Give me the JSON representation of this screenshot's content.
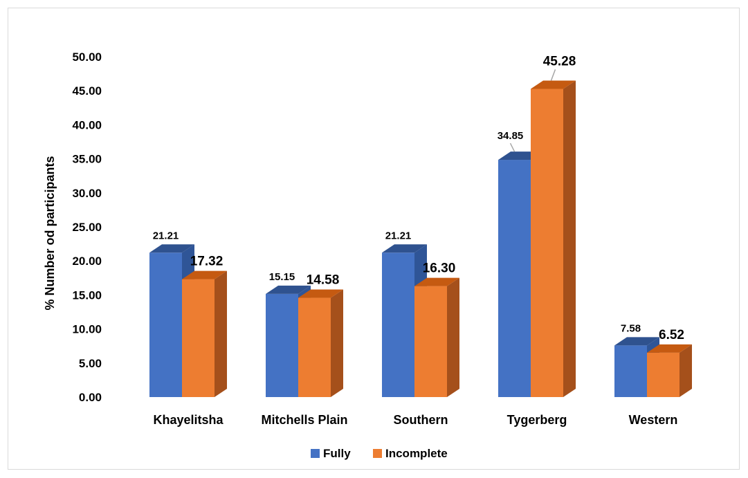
{
  "chart_data": {
    "type": "bar",
    "title": "",
    "xlabel": "",
    "ylabel": "% Number od participants",
    "ylim": [
      0,
      50
    ],
    "ytick_step": 5,
    "ytick_labels": [
      "0.00",
      "5.00",
      "10.00",
      "15.00",
      "20.00",
      "25.00",
      "30.00",
      "35.00",
      "40.00",
      "45.00",
      "50.00"
    ],
    "categories": [
      "Khayelitsha",
      "Mitchells Plain",
      "Southern",
      "Tygerberg",
      "Western"
    ],
    "series": [
      {
        "name": "Fully",
        "values": [
          21.21,
          15.15,
          21.21,
          34.85,
          7.58
        ],
        "labels": [
          "21.21",
          "15.15",
          "21.21",
          "34.85",
          "7.58"
        ],
        "color": "#4472c4",
        "top_color": "#2f528f",
        "side_color": "#2f5597"
      },
      {
        "name": "Incomplete",
        "values": [
          17.32,
          14.58,
          16.3,
          45.28,
          6.52
        ],
        "labels": [
          "17.32",
          "14.58",
          "16.30",
          "45.28",
          "6.52"
        ],
        "color": "#ed7d31",
        "top_color": "#c55a11",
        "side_color": "#a5501b"
      }
    ],
    "grid": false,
    "legend_position": "bottom"
  }
}
